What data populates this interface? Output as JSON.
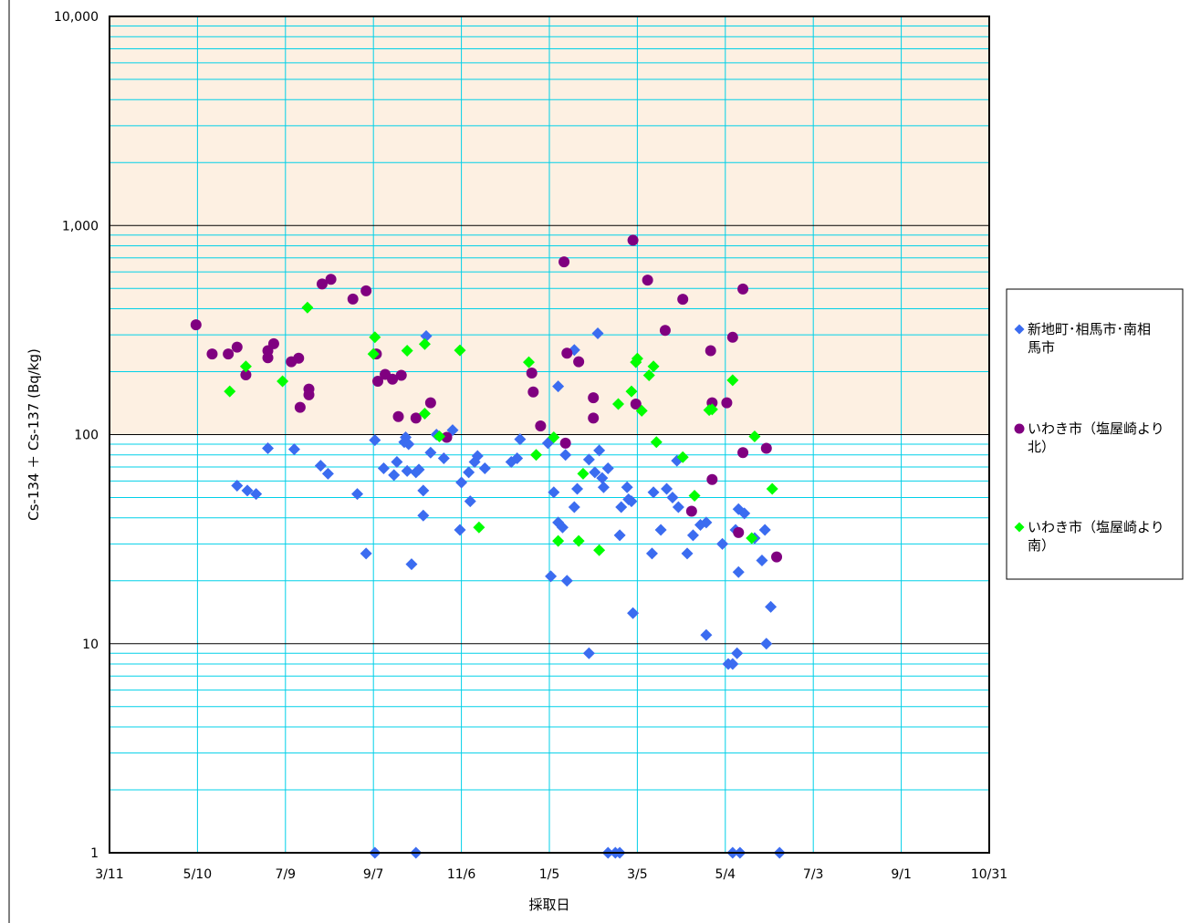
{
  "chart_data": {
    "type": "scatter",
    "title": "",
    "xlabel": "採取日",
    "ylabel": "Cs-134 ＋ Cs-137 (Bq/kg)",
    "yscale": "log",
    "ylim": [
      1,
      10000
    ],
    "xlim": [
      "2011-03-11",
      "2012-10-31"
    ],
    "x_ticks": [
      "3/11",
      "5/10",
      "7/9",
      "9/7",
      "11/6",
      "1/5",
      "3/5",
      "5/4",
      "7/3",
      "9/1",
      "10/31"
    ],
    "y_ticks": [
      "1",
      "10",
      "100",
      "1,000",
      "10,000"
    ],
    "highlight_tick": "100",
    "grid": true,
    "legend": "right",
    "shaded_region": {
      "from": 100,
      "to": 10000,
      "color": "#fdf0e2"
    },
    "colors": {
      "plot_border": "#000000",
      "grid_minor": "#00d0e8",
      "grid_major": "#000000",
      "highlight_tick": "#ff0000"
    },
    "series": [
      {
        "name": "新地町･相馬市･南相馬市",
        "marker": "diamond",
        "color": "#3b6cf0",
        "points": [
          [
            "2011-06-06",
            57
          ],
          [
            "2011-06-13",
            54
          ],
          [
            "2011-06-19",
            52
          ],
          [
            "2011-06-27",
            86
          ],
          [
            "2011-07-15",
            85
          ],
          [
            "2011-08-02",
            71
          ],
          [
            "2011-08-07",
            65
          ],
          [
            "2011-08-27",
            52
          ],
          [
            "2011-09-02",
            27
          ],
          [
            "2011-09-08",
            94
          ],
          [
            "2011-09-14",
            69
          ],
          [
            "2011-09-21",
            64
          ],
          [
            "2011-09-23",
            74
          ],
          [
            "2011-09-28",
            92
          ],
          [
            "2011-09-29",
            97
          ],
          [
            "2011-09-30",
            67
          ],
          [
            "2011-10-01",
            90
          ],
          [
            "2011-10-06",
            66
          ],
          [
            "2011-10-08",
            68
          ],
          [
            "2011-10-11",
            54
          ],
          [
            "2011-10-11",
            41
          ],
          [
            "2011-10-03",
            24
          ],
          [
            "2011-10-13",
            296
          ],
          [
            "2011-10-16",
            82
          ],
          [
            "2011-10-20",
            100
          ],
          [
            "2011-10-25",
            77
          ],
          [
            "2011-10-31",
            105
          ],
          [
            "2011-11-06",
            59
          ],
          [
            "2011-11-12",
            48
          ],
          [
            "2011-11-15",
            74
          ],
          [
            "2011-11-17",
            79
          ],
          [
            "2011-11-22",
            69
          ],
          [
            "2011-11-11",
            66
          ],
          [
            "2011-11-05",
            35
          ],
          [
            "2011-12-10",
            74
          ],
          [
            "2011-12-14",
            77
          ],
          [
            "2011-12-16",
            95
          ],
          [
            "2012-01-04",
            91
          ],
          [
            "2012-01-08",
            53
          ],
          [
            "2012-01-11",
            38
          ],
          [
            "2012-01-06",
            21
          ],
          [
            "2012-01-14",
            36
          ],
          [
            "2012-01-17",
            20
          ],
          [
            "2012-01-11",
            170
          ],
          [
            "2012-01-22",
            254
          ],
          [
            "2012-01-24",
            55
          ],
          [
            "2012-01-16",
            80
          ],
          [
            "2012-01-22",
            45
          ],
          [
            "2012-02-01",
            76
          ],
          [
            "2012-02-05",
            66
          ],
          [
            "2012-02-08",
            84
          ],
          [
            "2012-02-07",
            305
          ],
          [
            "2012-02-10",
            62
          ],
          [
            "2012-02-14",
            69
          ],
          [
            "2012-02-11",
            56
          ],
          [
            "2012-02-01",
            9
          ],
          [
            "2012-02-23",
            45
          ],
          [
            "2012-02-27",
            56
          ],
          [
            "2012-02-28",
            49
          ],
          [
            "2012-03-01",
            48
          ],
          [
            "2012-02-22",
            33
          ],
          [
            "2012-03-02",
            14
          ],
          [
            "2012-03-15",
            27
          ],
          [
            "2012-03-16",
            53
          ],
          [
            "2012-03-21",
            35
          ],
          [
            "2012-03-25",
            55
          ],
          [
            "2012-03-29",
            50
          ],
          [
            "2012-04-01",
            75
          ],
          [
            "2012-04-02",
            45
          ],
          [
            "2012-04-08",
            27
          ],
          [
            "2012-04-12",
            33
          ],
          [
            "2012-04-17",
            37
          ],
          [
            "2012-04-21",
            38
          ],
          [
            "2012-04-21",
            11
          ],
          [
            "2012-05-02",
            30
          ],
          [
            "2012-05-06",
            8
          ],
          [
            "2012-05-09",
            8
          ],
          [
            "2012-05-12",
            9
          ],
          [
            "2012-05-11",
            35
          ],
          [
            "2012-05-13",
            44
          ],
          [
            "2012-05-13",
            22
          ],
          [
            "2012-05-17",
            42
          ],
          [
            "2012-05-24",
            32
          ],
          [
            "2012-05-29",
            25
          ],
          [
            "2012-05-31",
            35
          ],
          [
            "2012-06-01",
            10
          ],
          [
            "2012-06-04",
            15
          ],
          [
            "2011-09-08",
            1
          ],
          [
            "2011-10-06",
            1
          ],
          [
            "2012-02-14",
            1
          ],
          [
            "2012-02-19",
            1
          ],
          [
            "2012-02-22",
            1
          ],
          [
            "2012-05-09",
            1
          ],
          [
            "2012-05-14",
            1
          ],
          [
            "2012-06-10",
            1
          ]
        ]
      },
      {
        "name": "いわき市（塩屋崎より北）",
        "marker": "circle",
        "color": "#800080",
        "points": [
          [
            "2011-05-09",
            335
          ],
          [
            "2011-05-20",
            243
          ],
          [
            "2011-05-31",
            243
          ],
          [
            "2011-06-06",
            262
          ],
          [
            "2011-06-12",
            193
          ],
          [
            "2011-06-27",
            252
          ],
          [
            "2011-06-27",
            233
          ],
          [
            "2011-07-01",
            272
          ],
          [
            "2011-07-13",
            223
          ],
          [
            "2011-07-18",
            232
          ],
          [
            "2011-07-19",
            135
          ],
          [
            "2011-07-25",
            165
          ],
          [
            "2011-07-25",
            155
          ],
          [
            "2011-08-03",
            525
          ],
          [
            "2011-08-09",
            553
          ],
          [
            "2011-08-24",
            445
          ],
          [
            "2011-09-02",
            487
          ],
          [
            "2011-09-09",
            243
          ],
          [
            "2011-09-10",
            180
          ],
          [
            "2011-09-15",
            194
          ],
          [
            "2011-09-20",
            184
          ],
          [
            "2011-09-24",
            122
          ],
          [
            "2011-09-26",
            192
          ],
          [
            "2011-10-06",
            120
          ],
          [
            "2011-10-16",
            142
          ],
          [
            "2011-10-27",
            97
          ],
          [
            "2011-12-24",
            197
          ],
          [
            "2011-12-25",
            160
          ],
          [
            "2011-12-30",
            110
          ],
          [
            "2012-01-16",
            91
          ],
          [
            "2012-01-15",
            670
          ],
          [
            "2012-01-17",
            245
          ],
          [
            "2012-01-25",
            223
          ],
          [
            "2012-02-04",
            150
          ],
          [
            "2012-02-04",
            120
          ],
          [
            "2012-03-02",
            850
          ],
          [
            "2012-03-04",
            140
          ],
          [
            "2012-03-12",
            548
          ],
          [
            "2012-03-24",
            315
          ],
          [
            "2012-04-05",
            444
          ],
          [
            "2012-04-11",
            43
          ],
          [
            "2012-04-24",
            252
          ],
          [
            "2012-04-25",
            142
          ],
          [
            "2012-05-05",
            142
          ],
          [
            "2012-05-09",
            292
          ],
          [
            "2012-05-13",
            34
          ],
          [
            "2012-05-16",
            497
          ],
          [
            "2012-05-16",
            82
          ],
          [
            "2012-06-01",
            86
          ],
          [
            "2012-06-08",
            26
          ],
          [
            "2012-04-25",
            61
          ]
        ]
      },
      {
        "name": "いわき市（塩屋崎より南）",
        "marker": "diamond",
        "color": "#00ff00",
        "points": [
          [
            "2011-06-01",
            161
          ],
          [
            "2011-06-12",
            212
          ],
          [
            "2011-07-07",
            180
          ],
          [
            "2011-07-24",
            405
          ],
          [
            "2011-09-07",
            243
          ],
          [
            "2011-09-08",
            292
          ],
          [
            "2011-09-30",
            252
          ],
          [
            "2011-10-12",
            126
          ],
          [
            "2011-10-12",
            271
          ],
          [
            "2011-10-22",
            98
          ],
          [
            "2011-11-05",
            253
          ],
          [
            "2011-11-18",
            36
          ],
          [
            "2011-12-22",
            222
          ],
          [
            "2012-01-08",
            97
          ],
          [
            "2012-01-11",
            31
          ],
          [
            "2012-01-25",
            31
          ],
          [
            "2012-01-28",
            65
          ],
          [
            "2012-02-08",
            28
          ],
          [
            "2012-02-21",
            140
          ],
          [
            "2012-03-01",
            161
          ],
          [
            "2012-03-04",
            222
          ],
          [
            "2012-03-05",
            231
          ],
          [
            "2012-03-08",
            130
          ],
          [
            "2012-03-13",
            192
          ],
          [
            "2012-03-16",
            212
          ],
          [
            "2012-03-18",
            92
          ],
          [
            "2012-04-05",
            78
          ],
          [
            "2012-04-13",
            51
          ],
          [
            "2012-04-23",
            131
          ],
          [
            "2012-04-25",
            132
          ],
          [
            "2012-05-09",
            182
          ],
          [
            "2012-05-22",
            32
          ],
          [
            "2012-05-24",
            98
          ],
          [
            "2012-06-05",
            55
          ],
          [
            "2011-12-27",
            80
          ]
        ]
      }
    ]
  }
}
